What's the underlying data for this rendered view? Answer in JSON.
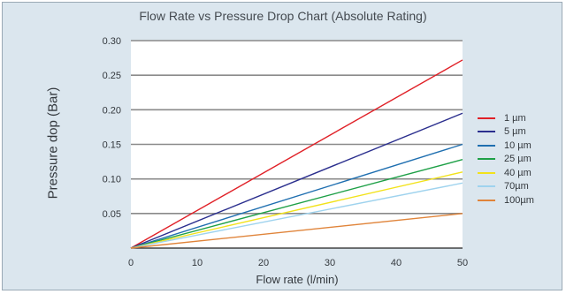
{
  "chart_data": {
    "type": "line",
    "title": "Flow Rate vs Pressure Drop Chart (Absolute Rating)",
    "xlabel": "Flow rate (l/min)",
    "ylabel": "Pressure dop (Bar)",
    "xlim": [
      0,
      50
    ],
    "ylim": [
      0,
      0.3
    ],
    "xticks": [
      "0",
      "10",
      "20",
      "30",
      "40",
      "50"
    ],
    "yticks": [
      "0.05",
      "0.10",
      "0.15",
      "0.20",
      "0.25",
      "0.30"
    ],
    "grid": "horizontal",
    "legend_position": "right",
    "series": [
      {
        "name": "1 µm",
        "color": "#e02027",
        "x": [
          0,
          50
        ],
        "y": [
          0,
          0.272
        ]
      },
      {
        "name": "5 µm",
        "color": "#2b2f8e",
        "x": [
          0,
          50
        ],
        "y": [
          0,
          0.195
        ]
      },
      {
        "name": "10 µm",
        "color": "#1f6fb0",
        "x": [
          0,
          50
        ],
        "y": [
          0,
          0.15
        ]
      },
      {
        "name": "25 µm",
        "color": "#1ea047",
        "x": [
          0,
          50
        ],
        "y": [
          0,
          0.128
        ]
      },
      {
        "name": "40 µm",
        "color": "#f2e21b",
        "x": [
          0,
          50
        ],
        "y": [
          0,
          0.11
        ]
      },
      {
        "name": "70µm",
        "color": "#9fd3ee",
        "x": [
          0,
          50
        ],
        "y": [
          0,
          0.094
        ]
      },
      {
        "name": "100µm",
        "color": "#e0843a",
        "x": [
          0,
          50
        ],
        "y": [
          0,
          0.05
        ]
      }
    ]
  }
}
